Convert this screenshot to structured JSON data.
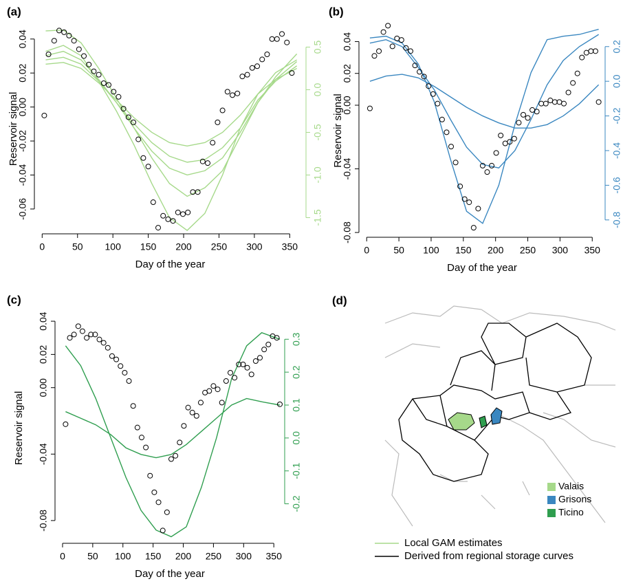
{
  "chart_data": [
    {
      "type": "scatter-line",
      "title": "(a)",
      "xlabel": "Day of the year",
      "ylabel": "Reservoir signal",
      "xlim": [
        -11,
        373
      ],
      "xticks": [
        0,
        50,
        100,
        150,
        200,
        250,
        300,
        350
      ],
      "ylim": [
        -0.0746,
        0.0488
      ],
      "yticks": [
        0.04,
        0.02,
        {
          "value": 0,
          "label": "0.00"
        },
        -0.02,
        -0.04,
        -0.06
      ],
      "y2lim": [
        -1.69,
        0.77
      ],
      "y2ticks": [
        0.5,
        {
          "value": 0,
          "label": "0.0"
        },
        -0.5,
        {
          "value": -1,
          "label": "-1.0"
        },
        -1.5
      ],
      "y2_color": "#a6d98a",
      "x": [
        3,
        9,
        17,
        24,
        31,
        38,
        45,
        52,
        59,
        66,
        73,
        80,
        87,
        94,
        101,
        108,
        115,
        122,
        129,
        136,
        143,
        150,
        157,
        164,
        171,
        178,
        185,
        192,
        199,
        206,
        213,
        220,
        227,
        234,
        241,
        248,
        255,
        262,
        269,
        276,
        283,
        290,
        297,
        304,
        311,
        318,
        325,
        332,
        339,
        346,
        353
      ],
      "values": [
        -0.005,
        0.031,
        0.039,
        0.045,
        0.044,
        0.042,
        0.039,
        0.034,
        0.03,
        0.025,
        0.021,
        0.019,
        0.014,
        0.013,
        0.009,
        0.006,
        -0.001,
        -0.006,
        -0.009,
        -0.019,
        -0.03,
        -0.035,
        -0.056,
        -0.071,
        -0.064,
        -0.066,
        -0.067,
        -0.062,
        -0.063,
        -0.062,
        -0.05,
        -0.05,
        -0.032,
        -0.033,
        -0.021,
        -0.009,
        -0.002,
        0.009,
        0.007,
        0.008,
        0.018,
        0.019,
        0.023,
        0.024,
        0.028,
        0.031,
        0.04,
        0.04,
        0.043,
        0.038,
        0.02
      ],
      "line_x": [
        5,
        30,
        55,
        80,
        105,
        130,
        155,
        180,
        205,
        230,
        255,
        280,
        305,
        330,
        360
      ],
      "lines": [
        {
          "color": "#a6d98a",
          "values": [
            0.45,
            0.52,
            0.4,
            0.1,
            -0.25,
            -0.65,
            -1.1,
            -1.5,
            -1.65,
            -1.45,
            -1.0,
            -0.45,
            -0.05,
            0.2,
            0.35
          ]
        },
        {
          "color": "#a6d98a",
          "values": [
            0.69,
            0.7,
            0.55,
            0.25,
            -0.1,
            -0.45,
            -0.8,
            -1.1,
            -1.25,
            -1.15,
            -0.95,
            -0.55,
            -0.15,
            0.15,
            0.42
          ]
        },
        {
          "color": "#a6d98a",
          "values": [
            0.4,
            0.45,
            0.35,
            0.12,
            -0.15,
            -0.45,
            -0.72,
            -0.92,
            -1.0,
            -0.95,
            -0.8,
            -0.5,
            -0.15,
            0.12,
            0.33
          ]
        },
        {
          "color": "#a6d98a",
          "values": [
            0.35,
            0.38,
            0.3,
            0.1,
            -0.15,
            -0.4,
            -0.62,
            -0.78,
            -0.85,
            -0.82,
            -0.68,
            -0.45,
            -0.12,
            0.1,
            0.28
          ]
        },
        {
          "color": "#a6d98a",
          "values": [
            0.3,
            0.32,
            0.25,
            0.08,
            -0.12,
            -0.33,
            -0.5,
            -0.62,
            -0.66,
            -0.62,
            -0.5,
            -0.3,
            -0.05,
            0.12,
            0.25
          ]
        }
      ]
    },
    {
      "type": "scatter-line",
      "title": "(b)",
      "xlabel": "Day of the year",
      "ylabel": "Reservoir signal",
      "xlim": [
        -12,
        370
      ],
      "xticks": [
        0,
        50,
        100,
        150,
        200,
        250,
        300,
        350
      ],
      "ylim": [
        -0.083,
        0.051
      ],
      "yticks": [
        0.04,
        0.02,
        {
          "value": 0,
          "label": "0.00"
        },
        -0.04,
        -0.08
      ],
      "y2lim": [
        -0.9,
        0.33
      ],
      "y2ticks": [
        0.2,
        {
          "value": 0,
          "label": "0.0"
        },
        -0.2,
        -0.4,
        -0.6,
        -0.8
      ],
      "y2_color": "#3a87c0",
      "x": [
        5,
        12,
        19,
        26,
        33,
        40,
        47,
        54,
        61,
        68,
        75,
        82,
        89,
        96,
        103,
        110,
        117,
        124,
        131,
        138,
        145,
        152,
        159,
        166,
        173,
        180,
        187,
        194,
        201,
        208,
        215,
        222,
        229,
        236,
        243,
        250,
        257,
        264,
        271,
        278,
        285,
        292,
        299,
        306,
        313,
        320,
        327,
        334,
        341,
        348,
        355,
        360
      ],
      "values": [
        -0.002,
        0.031,
        0.034,
        0.046,
        0.05,
        0.037,
        0.042,
        0.041,
        0.036,
        0.034,
        0.025,
        0.021,
        0.018,
        0.012,
        0.007,
        0.001,
        -0.009,
        -0.017,
        -0.026,
        -0.036,
        -0.051,
        -0.059,
        -0.061,
        -0.077,
        -0.065,
        -0.038,
        -0.042,
        -0.038,
        -0.03,
        -0.019,
        -0.024,
        -0.023,
        -0.021,
        -0.011,
        -0.006,
        -0.008,
        -0.003,
        -0.004,
        0.001,
        0.001,
        0.003,
        0.002,
        0.002,
        0.001,
        0.008,
        0.014,
        0.02,
        0.03,
        0.033,
        0.034,
        0.034,
        0.002
      ],
      "line_x": [
        5,
        30,
        55,
        80,
        105,
        130,
        155,
        180,
        205,
        230,
        255,
        280,
        305,
        330,
        360
      ],
      "lines": [
        {
          "color": "#3a87c0",
          "values": [
            0.25,
            0.26,
            0.22,
            0.1,
            -0.12,
            -0.45,
            -0.75,
            -0.82,
            -0.6,
            -0.25,
            0.05,
            0.24,
            0.26,
            0.27,
            0.3
          ]
        },
        {
          "color": "#3a87c0",
          "values": [
            0.22,
            0.24,
            0.2,
            0.08,
            -0.05,
            -0.22,
            -0.38,
            -0.48,
            -0.5,
            -0.4,
            -0.22,
            -0.02,
            0.12,
            0.2,
            0.27
          ]
        },
        {
          "color": "#3a87c0",
          "values": [
            0.0,
            0.03,
            0.04,
            0.02,
            -0.03,
            -0.09,
            -0.15,
            -0.2,
            -0.24,
            -0.27,
            -0.27,
            -0.25,
            -0.2,
            -0.13,
            -0.02
          ]
        }
      ]
    },
    {
      "type": "scatter-line",
      "title": "(c)",
      "xlabel": "Day of the year",
      "ylabel": "Reservoir signal",
      "xlim": [
        -12.5,
        368
      ],
      "xticks": [
        0,
        50,
        100,
        150,
        200,
        250,
        300,
        350
      ],
      "ylim": [
        -0.0937,
        0.045
      ],
      "yticks": [
        0.04,
        0.02,
        {
          "value": 0,
          "label": "0.00"
        },
        -0.04,
        -0.08
      ],
      "y2lim": [
        -0.32,
        0.38
      ],
      "y2ticks": [
        0.3,
        0.2,
        0.1,
        {
          "value": 0,
          "label": "0.0"
        },
        -0.1,
        -0.2
      ],
      "y2_color": "#2f9e4f",
      "x": [
        5,
        12,
        19,
        26,
        33,
        40,
        47,
        54,
        61,
        68,
        75,
        82,
        89,
        96,
        103,
        110,
        117,
        124,
        131,
        138,
        145,
        152,
        159,
        166,
        173,
        180,
        187,
        194,
        201,
        208,
        215,
        222,
        229,
        236,
        243,
        250,
        257,
        264,
        271,
        278,
        285,
        292,
        299,
        306,
        313,
        320,
        327,
        334,
        341,
        348,
        355,
        360
      ],
      "values": [
        -0.022,
        0.03,
        0.032,
        0.037,
        0.034,
        0.03,
        0.032,
        0.032,
        0.029,
        0.027,
        0.024,
        0.019,
        0.017,
        0.013,
        0.009,
        0.004,
        -0.011,
        -0.024,
        -0.03,
        -0.036,
        -0.053,
        -0.063,
        -0.069,
        -0.086,
        -0.075,
        -0.043,
        -0.041,
        -0.033,
        -0.023,
        -0.012,
        -0.015,
        -0.017,
        -0.009,
        -0.003,
        -0.002,
        0.001,
        -0.001,
        -0.009,
        0.004,
        0.009,
        0.006,
        0.014,
        0.014,
        0.012,
        0.008,
        0.016,
        0.018,
        0.023,
        0.026,
        0.031,
        0.03,
        -0.01
      ],
      "line_x": [
        5,
        30,
        55,
        80,
        105,
        130,
        155,
        180,
        205,
        230,
        255,
        280,
        305,
        330,
        360
      ],
      "lines": [
        {
          "color": "#2f9e4f",
          "values": [
            0.28,
            0.22,
            0.12,
            0.0,
            -0.12,
            -0.22,
            -0.28,
            -0.3,
            -0.27,
            -0.15,
            0.0,
            0.18,
            0.28,
            0.32,
            0.3
          ]
        },
        {
          "color": "#2f9e4f",
          "values": [
            0.08,
            0.06,
            0.04,
            0.01,
            -0.03,
            -0.05,
            -0.06,
            -0.05,
            -0.02,
            0.02,
            0.06,
            0.1,
            0.12,
            0.11,
            0.1
          ]
        }
      ]
    }
  ],
  "map": {
    "title": "(d)",
    "legend": [
      {
        "label": "Valais",
        "color": "#a6d98a"
      },
      {
        "label": "Grisons",
        "color": "#3a87c0"
      },
      {
        "label": "Ticino",
        "color": "#2f9e4f"
      }
    ]
  },
  "legend": [
    {
      "label": "Local GAM estimates",
      "color": "#a6d98a"
    },
    {
      "label": "Derived from regional storage curves",
      "color": "#000000"
    }
  ]
}
